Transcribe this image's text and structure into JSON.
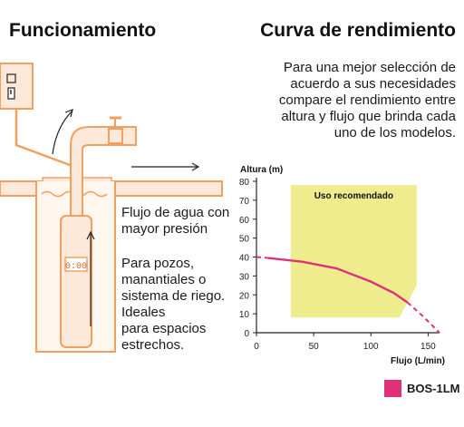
{
  "left": {
    "title": "Funcionamiento",
    "flow_lines": [
      "Flujo de agua con",
      "mayor presión"
    ],
    "use_lines": [
      "Para pozos,",
      "manantiales o",
      "sistema de riego.",
      "Ideales",
      "para espacios",
      "estrechos."
    ],
    "pump_display": "0:00"
  },
  "right": {
    "title": "Curva de rendimiento",
    "description_lines": [
      "Para una mejor selección de",
      "acuerdo a sus necesidades",
      "compare el rendimiento entre",
      "altura y flujo que brinda cada",
      "uno de los modelos."
    ]
  },
  "colors": {
    "curve": "#e0307a",
    "recommended_zone": "#eeec8c",
    "accent_dark": "#111111"
  },
  "chart_data": {
    "type": "line",
    "title": "",
    "xlabel": "Flujo (L/min)",
    "ylabel": "Altura (m)",
    "xlim": [
      0,
      160
    ],
    "ylim": [
      0,
      80
    ],
    "xticks": [
      0,
      50,
      100,
      150
    ],
    "yticks": [
      0,
      10,
      20,
      30,
      40,
      50,
      60,
      70,
      80
    ],
    "zone": {
      "label": "Uso recomendado",
      "polygon": [
        [
          30,
          8
        ],
        [
          30,
          78
        ],
        [
          140,
          78
        ],
        [
          140,
          25
        ],
        [
          125,
          8
        ]
      ]
    },
    "series": [
      {
        "name": "BOS-1LM",
        "solid": [
          [
            10,
            39.5
          ],
          [
            40,
            37.5
          ],
          [
            70,
            34
          ],
          [
            100,
            27
          ],
          [
            120,
            21
          ],
          [
            132,
            16
          ]
        ],
        "dashed": [
          [
            0,
            40
          ],
          [
            10,
            39.5
          ]
        ],
        "dashed_end": [
          [
            132,
            16
          ],
          [
            145,
            9
          ],
          [
            160,
            0
          ]
        ]
      }
    ],
    "legend": "bottom-right"
  }
}
